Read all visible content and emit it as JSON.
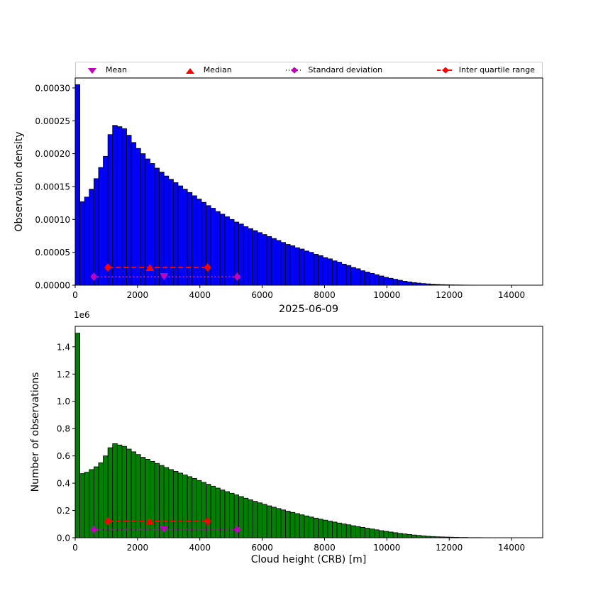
{
  "figure": {
    "title": "2025-06-09",
    "legend": [
      {
        "label": "Mean",
        "marker": "triangle-down-icon",
        "color": "#BF00BF"
      },
      {
        "label": "Median",
        "marker": "triangle-up-icon",
        "color": "#FF0000"
      },
      {
        "label": "Standard deviation",
        "marker": "diamond-dotted-line-icon",
        "color": "#BF00BF"
      },
      {
        "label": "Inter quartile range",
        "marker": "diamond-dashed-line-icon",
        "color": "#FF0000"
      }
    ]
  },
  "chart_data": [
    {
      "type": "bar",
      "style": "histogram",
      "panel": "top",
      "ylabel": "Observation density",
      "color": "#0000FF",
      "edge_color": "#000000",
      "bin_start": 0,
      "bin_width": 150,
      "value_unit": 1e-05,
      "xlim": [
        0,
        15000
      ],
      "ylim": [
        0,
        31.5
      ],
      "xticks": [
        {
          "v": 0,
          "label": "0"
        },
        {
          "v": 2000,
          "label": "2000"
        },
        {
          "v": 4000,
          "label": "4000"
        },
        {
          "v": 6000,
          "label": "6000"
        },
        {
          "v": 8000,
          "label": "8000"
        },
        {
          "v": 10000,
          "label": "10000"
        },
        {
          "v": 12000,
          "label": "12000"
        },
        {
          "v": 14000,
          "label": "14000"
        }
      ],
      "yticks": [
        {
          "v": 0,
          "label": "0.00000"
        },
        {
          "v": 5,
          "label": "0.00005"
        },
        {
          "v": 10,
          "label": "0.00010"
        },
        {
          "v": 15,
          "label": "0.00015"
        },
        {
          "v": 20,
          "label": "0.00020"
        },
        {
          "v": 25,
          "label": "0.00025"
        },
        {
          "v": 30,
          "label": "0.00030"
        }
      ],
      "values": [
        30.5,
        12.7,
        13.4,
        14.6,
        16.2,
        17.9,
        19.6,
        22.9,
        24.3,
        24.1,
        23.8,
        22.8,
        21.7,
        20.8,
        20.0,
        19.2,
        18.5,
        17.8,
        17.2,
        16.6,
        16.1,
        15.6,
        15.1,
        14.6,
        14.1,
        13.6,
        13.1,
        12.6,
        12.1,
        11.7,
        11.2,
        10.8,
        10.4,
        10.0,
        9.6,
        9.3,
        8.9,
        8.6,
        8.3,
        8.0,
        7.7,
        7.4,
        7.1,
        6.8,
        6.5,
        6.2,
        6.0,
        5.7,
        5.5,
        5.2,
        5.0,
        4.7,
        4.5,
        4.2,
        4.0,
        3.7,
        3.5,
        3.2,
        3.0,
        2.7,
        2.5,
        2.2,
        2.0,
        1.8,
        1.6,
        1.4,
        1.2,
        1.05,
        0.9,
        0.75,
        0.6,
        0.5,
        0.4,
        0.32,
        0.25,
        0.2,
        0.15,
        0.12,
        0.09,
        0.07,
        0.05,
        0.04,
        0.03,
        0.02,
        0.015,
        0.01,
        0.008,
        0.005,
        0.004,
        0.003,
        0.002,
        0.002,
        0.001,
        0.001,
        0.001,
        0,
        0,
        0,
        0,
        0
      ],
      "markers": {
        "std": {
          "x1": 600,
          "x2": 5200,
          "y": 1.3,
          "color": "#BF00BF"
        },
        "iqr": {
          "x1": 1050,
          "x2": 4250,
          "y": 2.7,
          "color": "#FF0000"
        },
        "mean": {
          "x": 2850,
          "color": "#BF00BF"
        },
        "median": {
          "x": 2400,
          "color": "#FF0000"
        }
      }
    },
    {
      "type": "bar",
      "style": "histogram",
      "panel": "bottom",
      "title": "2025-06-09",
      "ylabel": "Number of observations",
      "xlabel": "Cloud height (CRB) [m]",
      "offset_text": "1e6",
      "color": "#008000",
      "edge_color": "#000000",
      "bin_start": 0,
      "bin_width": 150,
      "value_unit": 1000000,
      "xlim": [
        0,
        15000
      ],
      "ylim": [
        0,
        1.55
      ],
      "xticks": [
        {
          "v": 0,
          "label": "0"
        },
        {
          "v": 2000,
          "label": "2000"
        },
        {
          "v": 4000,
          "label": "4000"
        },
        {
          "v": 6000,
          "label": "6000"
        },
        {
          "v": 8000,
          "label": "8000"
        },
        {
          "v": 10000,
          "label": "10000"
        },
        {
          "v": 12000,
          "label": "12000"
        },
        {
          "v": 14000,
          "label": "14000"
        }
      ],
      "yticks": [
        {
          "v": 0,
          "label": "0.0"
        },
        {
          "v": 0.2,
          "label": "0.2"
        },
        {
          "v": 0.4,
          "label": "0.4"
        },
        {
          "v": 0.6,
          "label": "0.6"
        },
        {
          "v": 0.8,
          "label": "0.8"
        },
        {
          "v": 1.0,
          "label": "1.0"
        },
        {
          "v": 1.2,
          "label": "1.2"
        },
        {
          "v": 1.4,
          "label": "1.4"
        }
      ],
      "values": [
        1.5,
        0.47,
        0.48,
        0.5,
        0.52,
        0.55,
        0.6,
        0.66,
        0.69,
        0.68,
        0.67,
        0.65,
        0.63,
        0.61,
        0.59,
        0.575,
        0.56,
        0.545,
        0.53,
        0.515,
        0.5,
        0.487,
        0.474,
        0.461,
        0.448,
        0.435,
        0.42,
        0.406,
        0.392,
        0.378,
        0.364,
        0.35,
        0.338,
        0.326,
        0.314,
        0.302,
        0.29,
        0.278,
        0.267,
        0.256,
        0.245,
        0.234,
        0.224,
        0.214,
        0.204,
        0.195,
        0.186,
        0.177,
        0.168,
        0.16,
        0.152,
        0.144,
        0.136,
        0.129,
        0.122,
        0.115,
        0.108,
        0.101,
        0.095,
        0.088,
        0.082,
        0.076,
        0.07,
        0.064,
        0.058,
        0.052,
        0.047,
        0.042,
        0.037,
        0.032,
        0.028,
        0.024,
        0.02,
        0.017,
        0.014,
        0.011,
        0.009,
        0.007,
        0.006,
        0.005,
        0.004,
        0.003,
        0.002,
        0.002,
        0.001,
        0.001,
        0.001,
        0,
        0,
        0,
        0,
        0,
        0,
        0,
        0,
        0,
        0,
        0,
        0,
        0
      ],
      "markers": {
        "std": {
          "x1": 600,
          "x2": 5200,
          "y": 0.06,
          "color": "#BF00BF"
        },
        "iqr": {
          "x1": 1050,
          "x2": 4250,
          "y": 0.12,
          "color": "#FF0000"
        },
        "mean": {
          "x": 2850,
          "color": "#BF00BF"
        },
        "median": {
          "x": 2400,
          "color": "#FF0000"
        }
      }
    }
  ]
}
